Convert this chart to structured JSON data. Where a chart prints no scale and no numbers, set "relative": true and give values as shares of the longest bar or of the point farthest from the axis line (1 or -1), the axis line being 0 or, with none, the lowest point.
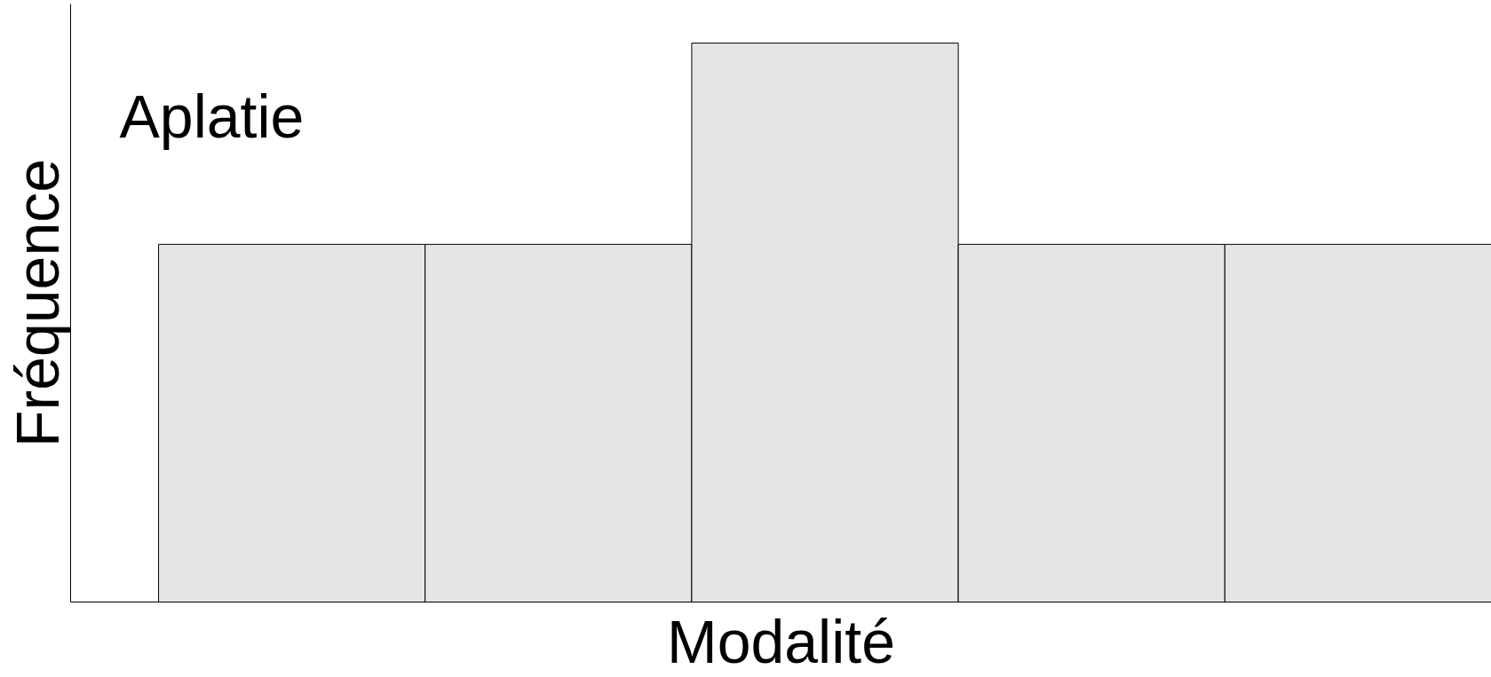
{
  "chart_data": {
    "type": "bar",
    "relative": true,
    "categories": [
      null,
      null,
      null,
      null,
      null
    ],
    "values": [
      0.64,
      0.64,
      1,
      0.64,
      0.64
    ],
    "color": "#e5e5e5",
    "xlabel": "Modalité",
    "ylabel": "Fréquence",
    "annotations": [
      "Aplatie"
    ],
    "grid": false
  }
}
